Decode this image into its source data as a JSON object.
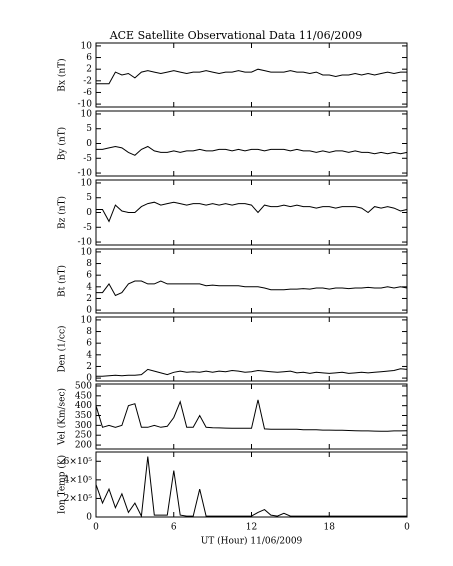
{
  "chart_data": [
    {
      "type": "line",
      "title": "ACE Satellite Observational Data   11/06/2009",
      "ylabel": "Bx (nT)",
      "color": "#000000",
      "xlim": [
        0,
        24
      ],
      "ylim": [
        -11,
        11
      ],
      "yticks": [
        -10,
        -6,
        -2,
        2,
        6,
        10
      ],
      "x": [
        0,
        0.5,
        1,
        1.5,
        2,
        2.5,
        3,
        3.5,
        4,
        4.5,
        5,
        5.5,
        6,
        6.5,
        7,
        7.5,
        8,
        8.5,
        9,
        9.5,
        10,
        10.5,
        11,
        11.5,
        12,
        12.5,
        13,
        13.5,
        14,
        14.5,
        15,
        15.5,
        16,
        16.5,
        17,
        17.5,
        18,
        18.5,
        19,
        19.5,
        20,
        20.5,
        21,
        21.5,
        22,
        22.5,
        23,
        23.5,
        24
      ],
      "values": [
        -3,
        -3,
        -3,
        1,
        0,
        0.5,
        -1,
        1,
        1.5,
        1,
        0.5,
        1,
        1.5,
        1,
        0.5,
        1,
        1,
        1.5,
        1,
        0.5,
        1,
        1,
        1.5,
        1,
        1,
        2,
        1.5,
        1,
        1,
        1,
        1.5,
        1,
        1,
        0.5,
        1,
        0,
        0,
        -0.5,
        0,
        0,
        0.5,
        0,
        0.5,
        0,
        0.5,
        1,
        0.5,
        1,
        1
      ]
    },
    {
      "type": "line",
      "ylabel": "By (nT)",
      "color": "#000000",
      "xlim": [
        0,
        24
      ],
      "ylim": [
        -11,
        11
      ],
      "yticks": [
        -10,
        -5,
        0,
        5,
        10
      ],
      "x": [
        0,
        0.5,
        1,
        1.5,
        2,
        2.5,
        3,
        3.5,
        4,
        4.5,
        5,
        5.5,
        6,
        6.5,
        7,
        7.5,
        8,
        8.5,
        9,
        9.5,
        10,
        10.5,
        11,
        11.5,
        12,
        12.5,
        13,
        13.5,
        14,
        14.5,
        15,
        15.5,
        16,
        16.5,
        17,
        17.5,
        18,
        18.5,
        19,
        19.5,
        20,
        20.5,
        21,
        21.5,
        22,
        22.5,
        23,
        23.5,
        24
      ],
      "values": [
        -2,
        -2,
        -1.5,
        -1,
        -1.5,
        -3,
        -4,
        -2,
        -1,
        -2.5,
        -3,
        -3,
        -2.5,
        -3,
        -2.5,
        -2.5,
        -2,
        -2.5,
        -2.5,
        -2,
        -2,
        -2.5,
        -2,
        -2.5,
        -2,
        -2,
        -2.5,
        -2,
        -2,
        -2,
        -2.5,
        -2,
        -2.5,
        -2.5,
        -3,
        -2.5,
        -3,
        -2.5,
        -2.5,
        -3,
        -2.5,
        -3,
        -3,
        -3.5,
        -3,
        -3.5,
        -3,
        -3.5,
        -3
      ]
    },
    {
      "type": "line",
      "ylabel": "Bz (nT)",
      "color": "#000000",
      "xlim": [
        0,
        24
      ],
      "ylim": [
        -11,
        11
      ],
      "yticks": [
        -10,
        -5,
        0,
        5,
        10
      ],
      "x": [
        0,
        0.5,
        1,
        1.5,
        2,
        2.5,
        3,
        3.5,
        4,
        4.5,
        5,
        5.5,
        6,
        6.5,
        7,
        7.5,
        8,
        8.5,
        9,
        9.5,
        10,
        10.5,
        11,
        11.5,
        12,
        12.5,
        13,
        13.5,
        14,
        14.5,
        15,
        15.5,
        16,
        16.5,
        17,
        17.5,
        18,
        18.5,
        19,
        19.5,
        20,
        20.5,
        21,
        21.5,
        22,
        22.5,
        23,
        23.5,
        24
      ],
      "values": [
        1,
        1,
        -3,
        2.5,
        0.5,
        0,
        0,
        2,
        3,
        3.5,
        2.5,
        3,
        3.5,
        3,
        2.5,
        3,
        3,
        2.5,
        3,
        2.5,
        3,
        2.5,
        3,
        3,
        2.5,
        0,
        2.5,
        2,
        2,
        2.5,
        2,
        2.5,
        2,
        2,
        1.5,
        2,
        2,
        1.5,
        2,
        2,
        2,
        1.5,
        0,
        2,
        1.5,
        2,
        1.5,
        0.5,
        1
      ]
    },
    {
      "type": "line",
      "ylabel": "Bt (nT)",
      "color": "#000000",
      "xlim": [
        0,
        24
      ],
      "ylim": [
        -0.5,
        10.5
      ],
      "yticks": [
        0,
        2,
        4,
        6,
        8,
        10
      ],
      "x": [
        0,
        0.5,
        1,
        1.5,
        2,
        2.5,
        3,
        3.5,
        4,
        4.5,
        5,
        5.5,
        6,
        6.5,
        7,
        7.5,
        8,
        8.5,
        9,
        9.5,
        10,
        10.5,
        11,
        11.5,
        12,
        12.5,
        13,
        13.5,
        14,
        14.5,
        15,
        15.5,
        16,
        16.5,
        17,
        17.5,
        18,
        18.5,
        19,
        19.5,
        20,
        20.5,
        21,
        21.5,
        22,
        22.5,
        23,
        23.5,
        24
      ],
      "values": [
        3,
        3,
        4.5,
        2.5,
        3,
        4.5,
        5,
        5,
        4.5,
        4.5,
        5,
        4.5,
        4.5,
        4.5,
        4.5,
        4.5,
        4.5,
        4.2,
        4.3,
        4.2,
        4.2,
        4.2,
        4.2,
        4,
        4,
        4,
        3.8,
        3.5,
        3.5,
        3.5,
        3.6,
        3.6,
        3.7,
        3.6,
        3.8,
        3.8,
        3.6,
        3.8,
        3.8,
        3.7,
        3.8,
        3.8,
        3.9,
        3.8,
        3.8,
        4,
        3.8,
        4,
        3.8
      ]
    },
    {
      "type": "line",
      "ylabel": "Den (1/cc)",
      "color": "#000000",
      "xlim": [
        0,
        24
      ],
      "ylim": [
        -0.5,
        10.5
      ],
      "yticks": [
        0,
        2,
        4,
        6,
        8,
        10
      ],
      "x": [
        0,
        0.5,
        1,
        1.5,
        2,
        2.5,
        3,
        3.5,
        4,
        4.5,
        5,
        5.5,
        6,
        6.5,
        7,
        7.5,
        8,
        8.5,
        9,
        9.5,
        10,
        10.5,
        11,
        11.5,
        12,
        12.5,
        13,
        13.5,
        14,
        14.5,
        15,
        15.5,
        16,
        16.5,
        17,
        17.5,
        18,
        18.5,
        19,
        19.5,
        20,
        20.5,
        21,
        21.5,
        22,
        22.5,
        23,
        23.5,
        24
      ],
      "values": [
        0.3,
        0.3,
        0.4,
        0.5,
        0.4,
        0.5,
        0.5,
        0.6,
        1.5,
        1.2,
        0.9,
        0.6,
        1,
        1.2,
        1,
        1.1,
        1,
        1.2,
        1,
        1.2,
        1.1,
        1.3,
        1.2,
        1,
        1.1,
        1.3,
        1.2,
        1.1,
        1,
        1.1,
        1.2,
        0.9,
        1,
        0.8,
        1,
        0.9,
        0.8,
        0.9,
        1,
        0.8,
        0.9,
        1,
        0.9,
        1,
        1.1,
        1.2,
        1.3,
        1.6,
        1.5
      ]
    },
    {
      "type": "line",
      "ylabel": "Vel (Km/sec)",
      "color": "#000000",
      "xlim": [
        0,
        24
      ],
      "ylim": [
        180,
        510
      ],
      "yticks": [
        200,
        250,
        300,
        350,
        400,
        450,
        500
      ],
      "x": [
        0,
        0.5,
        1,
        1.5,
        2,
        2.5,
        3,
        3.5,
        4,
        4.5,
        5,
        5.5,
        6,
        6.5,
        7,
        7.5,
        8,
        8.5,
        9,
        9.5,
        10,
        10.5,
        11,
        11.5,
        12,
        12.5,
        13,
        13.5,
        14,
        14.5,
        15,
        15.5,
        16,
        16.5,
        17,
        17.5,
        18,
        18.5,
        19,
        19.5,
        20,
        20.5,
        21,
        21.5,
        22,
        22.5,
        23,
        23.5,
        24
      ],
      "values": [
        400,
        290,
        300,
        290,
        300,
        400,
        410,
        290,
        290,
        300,
        290,
        295,
        340,
        420,
        290,
        290,
        350,
        290,
        288,
        287,
        286,
        285,
        285,
        285,
        285,
        430,
        282,
        280,
        280,
        280,
        280,
        280,
        278,
        278,
        278,
        276,
        276,
        275,
        275,
        274,
        273,
        272,
        272,
        271,
        270,
        270,
        272,
        272,
        273
      ]
    },
    {
      "type": "line",
      "ylabel": "Ion Temp (K)",
      "xlabel": "UT (Hour)  11/06/2009",
      "color": "#000000",
      "xlim": [
        0,
        24
      ],
      "ylim": [
        0,
        700000
      ],
      "yticks": [
        0,
        {
          "value": 200000,
          "label": "2×10⁵"
        },
        {
          "value": 400000,
          "label": "4×10⁵"
        },
        {
          "value": 600000,
          "label": "6×10⁵"
        }
      ],
      "xticks": [
        0,
        6,
        12,
        18,
        {
          "value": 24,
          "label": "0"
        }
      ],
      "x": [
        0,
        0.5,
        1,
        1.5,
        2,
        2.5,
        3,
        3.5,
        4,
        4.5,
        5,
        5.5,
        6,
        6.5,
        7,
        7.5,
        8,
        8.5,
        9,
        9.5,
        10,
        10.5,
        11,
        11.5,
        12,
        12.5,
        13,
        13.5,
        14,
        14.5,
        15,
        15.5,
        16,
        16.5,
        17,
        17.5,
        18,
        18.5,
        19,
        19.5,
        20,
        20.5,
        21,
        21.5,
        22,
        22.5,
        23,
        23.5,
        24
      ],
      "values": [
        350000,
        150000,
        300000,
        100000,
        250000,
        50000,
        150000,
        10000,
        650000,
        20000,
        20000,
        20000,
        500000,
        20000,
        10000,
        10000,
        300000,
        10000,
        10000,
        10000,
        10000,
        10000,
        10000,
        10000,
        10000,
        50000,
        80000,
        20000,
        10000,
        40000,
        10000,
        10000,
        10000,
        10000,
        10000,
        10000,
        10000,
        10000,
        10000,
        10000,
        10000,
        10000,
        10000,
        10000,
        10000,
        10000,
        10000,
        10000,
        10000
      ]
    }
  ]
}
